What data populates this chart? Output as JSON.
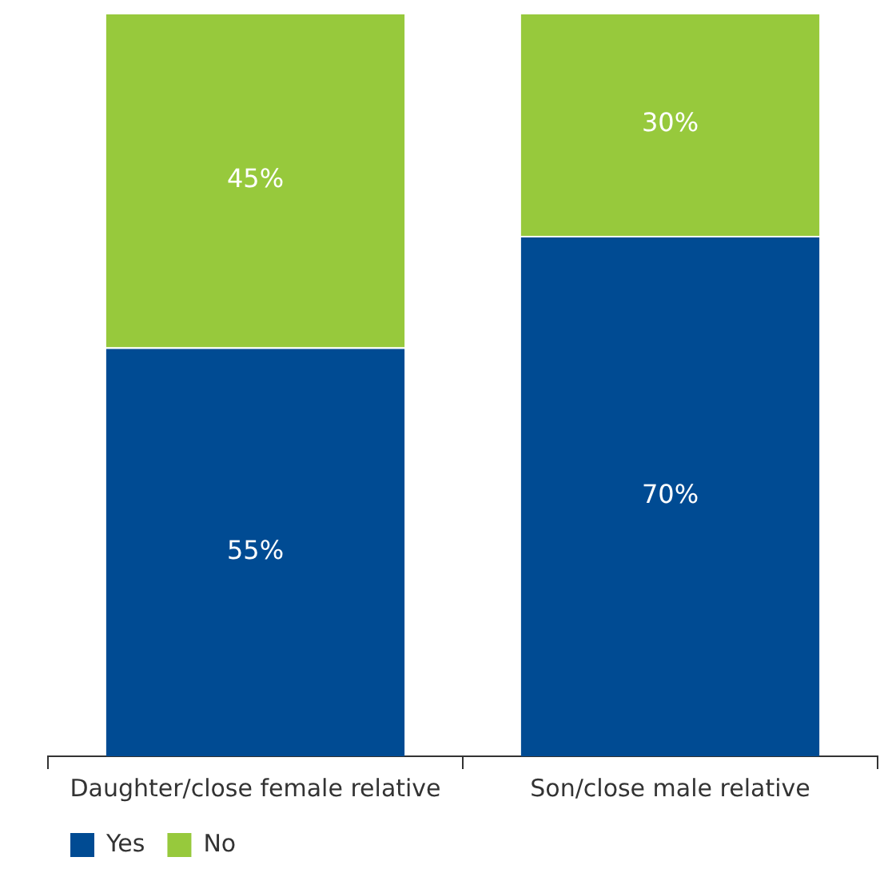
{
  "chart_data": {
    "type": "bar",
    "stacked": true,
    "categories": [
      "Daughter/close female relative",
      "Son/close male relative"
    ],
    "series": [
      {
        "name": "Yes",
        "color": "#004b93",
        "values": [
          55,
          70
        ],
        "value_labels": [
          "55%",
          "70%"
        ]
      },
      {
        "name": "No",
        "color": "#97c93c",
        "values": [
          45,
          30
        ],
        "value_labels": [
          "45%",
          "30%"
        ]
      }
    ],
    "legend": "bottom left"
  }
}
